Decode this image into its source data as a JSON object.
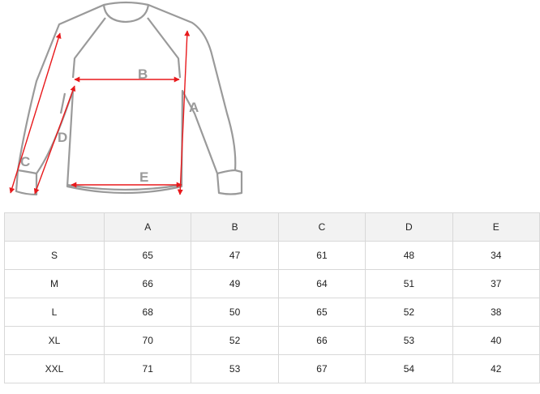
{
  "diagram": {
    "labels": {
      "a": "A",
      "b": "B",
      "c": "C",
      "d": "D",
      "e": "E"
    },
    "outline_color": "#9a9a9a",
    "arrow_color": "#e8191c"
  },
  "table": {
    "headers": [
      "",
      "A",
      "B",
      "C",
      "D",
      "E"
    ],
    "rows": [
      [
        "S",
        "65",
        "47",
        "61",
        "48",
        "34"
      ],
      [
        "M",
        "66",
        "49",
        "64",
        "51",
        "37"
      ],
      [
        "L",
        "68",
        "50",
        "65",
        "52",
        "38"
      ],
      [
        "XL",
        "70",
        "52",
        "66",
        "53",
        "40"
      ],
      [
        "XXL",
        "71",
        "53",
        "67",
        "54",
        "42"
      ]
    ]
  }
}
